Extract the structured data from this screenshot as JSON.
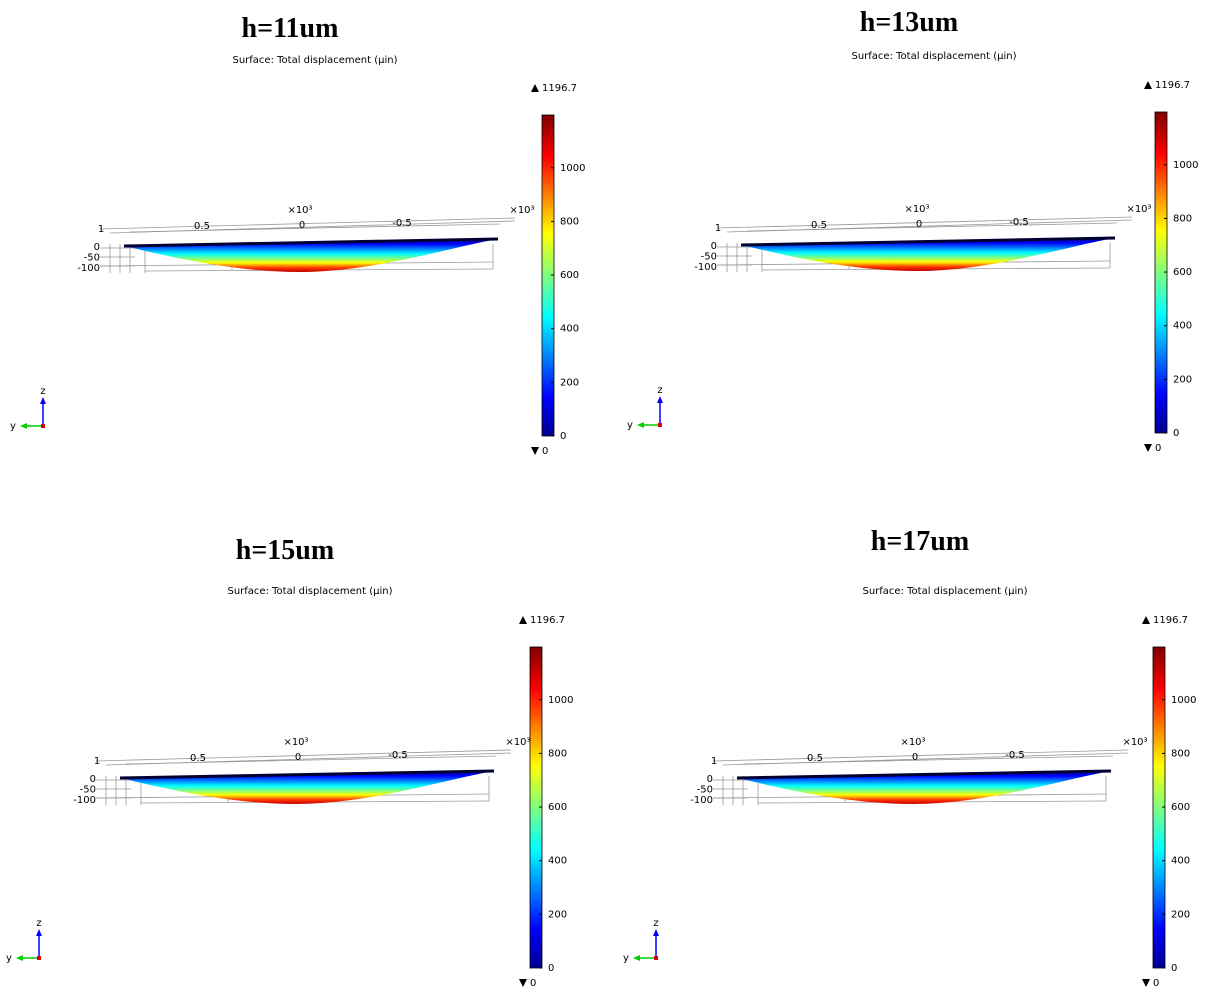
{
  "chart_data": [
    {
      "type": "surface",
      "title": "h=11um",
      "subtitle": "Surface: Total displacement (µin)",
      "xticks": [
        1,
        0.5,
        0,
        -0.5
      ],
      "x_exponent": "×10³",
      "zticks": [
        0,
        -50,
        -100
      ],
      "triad_labels": [
        "z",
        "y"
      ],
      "ylim": [
        0,
        1196.7
      ],
      "yticks": [
        0,
        200,
        400,
        600,
        800,
        1000
      ]
    },
    {
      "type": "surface",
      "title": "h=13um",
      "subtitle": "Surface: Total displacement (µin)",
      "xticks": [
        1,
        0.5,
        0,
        -0.5
      ],
      "x_exponent": "×10³",
      "zticks": [
        0,
        -50,
        -100
      ],
      "triad_labels": [
        "z",
        "y"
      ],
      "ylim": [
        0,
        1196.7
      ],
      "yticks": [
        0,
        200,
        400,
        600,
        800,
        1000
      ]
    },
    {
      "type": "surface",
      "title": "h=15um",
      "subtitle": "Surface: Total displacement (µin)",
      "xticks": [
        1,
        0.5,
        0,
        -0.5
      ],
      "x_exponent": "×10³",
      "zticks": [
        0,
        -50,
        -100
      ],
      "triad_labels": [
        "z",
        "y"
      ],
      "ylim": [
        0,
        1196.7
      ],
      "yticks": [
        0,
        200,
        400,
        600,
        800,
        1000
      ]
    },
    {
      "type": "surface",
      "title": "h=17um",
      "subtitle": "Surface: Total displacement (µin)",
      "xticks": [
        1,
        0.5,
        0,
        -0.5
      ],
      "x_exponent": "×10³",
      "zticks": [
        0,
        -50,
        -100
      ],
      "triad_labels": [
        "z",
        "y"
      ],
      "ylim": [
        0,
        1196.7
      ],
      "yticks": [
        0,
        200,
        400,
        600,
        800,
        1000
      ]
    }
  ]
}
